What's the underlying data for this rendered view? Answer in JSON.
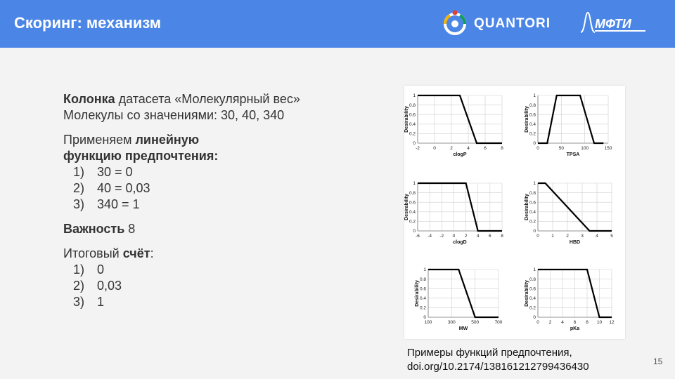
{
  "header": {
    "title": "Скоринг: механизм",
    "logo_quantori": "QUANTORI",
    "logo_mfti": "МФТИ"
  },
  "content": {
    "line1_bold": "Колонка",
    "line1_rest": " датасета «Молекулярный вес»",
    "line2": "Молекулы со значениями: 30, 40, 340",
    "apply_prefix": "Применяем ",
    "apply_bold1": "линейную",
    "apply_bold2": "функцию предпочтения:",
    "list1": [
      {
        "num": "1)",
        "text": "30 = 0"
      },
      {
        "num": "2)",
        "text": "40 = 0,03"
      },
      {
        "num": "3)",
        "text": "340 = 1"
      }
    ],
    "importance_bold": "Важность",
    "importance_value": " 8",
    "score_prefix": "Итоговый ",
    "score_bold": "счёт",
    "score_suffix": ":",
    "list2": [
      {
        "num": "1)",
        "text": "0"
      },
      {
        "num": "2)",
        "text": "0,03"
      },
      {
        "num": "3)",
        "text": "1"
      }
    ]
  },
  "caption": {
    "line1": "Примеры функций предпочтения,",
    "line2": "doi.org/10.2174/138161212799436430"
  },
  "page_number": "15",
  "chart_data": [
    {
      "type": "line",
      "xlabel": "clogP",
      "ylabel": "Desirability",
      "xticks": [
        -2,
        0,
        2,
        4,
        6,
        8
      ],
      "yticks": [
        0,
        0.2,
        0.4,
        0.6,
        0.8,
        1
      ],
      "xlim": [
        -2,
        8
      ],
      "ylim": [
        0,
        1
      ],
      "x": [
        -2,
        3,
        5,
        8
      ],
      "y": [
        1,
        1,
        0,
        0
      ]
    },
    {
      "type": "line",
      "xlabel": "TPSA",
      "ylabel": "Desirability",
      "xticks": [
        0,
        50,
        100,
        150
      ],
      "yticks": [
        0,
        0.2,
        0.4,
        0.6,
        0.8,
        1
      ],
      "xlim": [
        0,
        150
      ],
      "ylim": [
        0,
        1
      ],
      "x": [
        0,
        20,
        40,
        90,
        120,
        140
      ],
      "y": [
        0,
        0,
        1,
        1,
        0,
        0
      ]
    },
    {
      "type": "line",
      "xlabel": "clogD",
      "ylabel": "Desirability",
      "xticks": [
        -6,
        -4,
        -2,
        0,
        2,
        4,
        6,
        8
      ],
      "yticks": [
        0,
        0.2,
        0.4,
        0.6,
        0.8,
        1
      ],
      "xlim": [
        -6,
        8
      ],
      "ylim": [
        0,
        1
      ],
      "x": [
        -6,
        2,
        4,
        8
      ],
      "y": [
        1,
        1,
        0,
        0
      ]
    },
    {
      "type": "line",
      "xlabel": "HBD",
      "ylabel": "Desirability",
      "xticks": [
        0,
        1,
        2,
        3,
        4,
        5
      ],
      "yticks": [
        0,
        0.2,
        0.4,
        0.6,
        0.8,
        1
      ],
      "xlim": [
        0,
        5
      ],
      "ylim": [
        0,
        1
      ],
      "x": [
        0,
        0.5,
        3.5,
        5
      ],
      "y": [
        1,
        1,
        0,
        0
      ]
    },
    {
      "type": "line",
      "xlabel": "MW",
      "ylabel": "Desirability",
      "xticks": [
        100,
        300,
        500,
        700
      ],
      "yticks": [
        0,
        0.2,
        0.4,
        0.6,
        0.8,
        1
      ],
      "xlim": [
        100,
        700
      ],
      "ylim": [
        0,
        1
      ],
      "x": [
        100,
        360,
        500,
        700
      ],
      "y": [
        1,
        1,
        0,
        0
      ]
    },
    {
      "type": "line",
      "xlabel": "pKa",
      "ylabel": "Desirability",
      "xticks": [
        0,
        2,
        4,
        6,
        8,
        10,
        12
      ],
      "yticks": [
        0,
        0.2,
        0.4,
        0.6,
        0.8,
        1
      ],
      "xlim": [
        0,
        12
      ],
      "ylim": [
        0,
        1
      ],
      "x": [
        0,
        8,
        10,
        12
      ],
      "y": [
        1,
        1,
        0,
        0
      ]
    }
  ]
}
